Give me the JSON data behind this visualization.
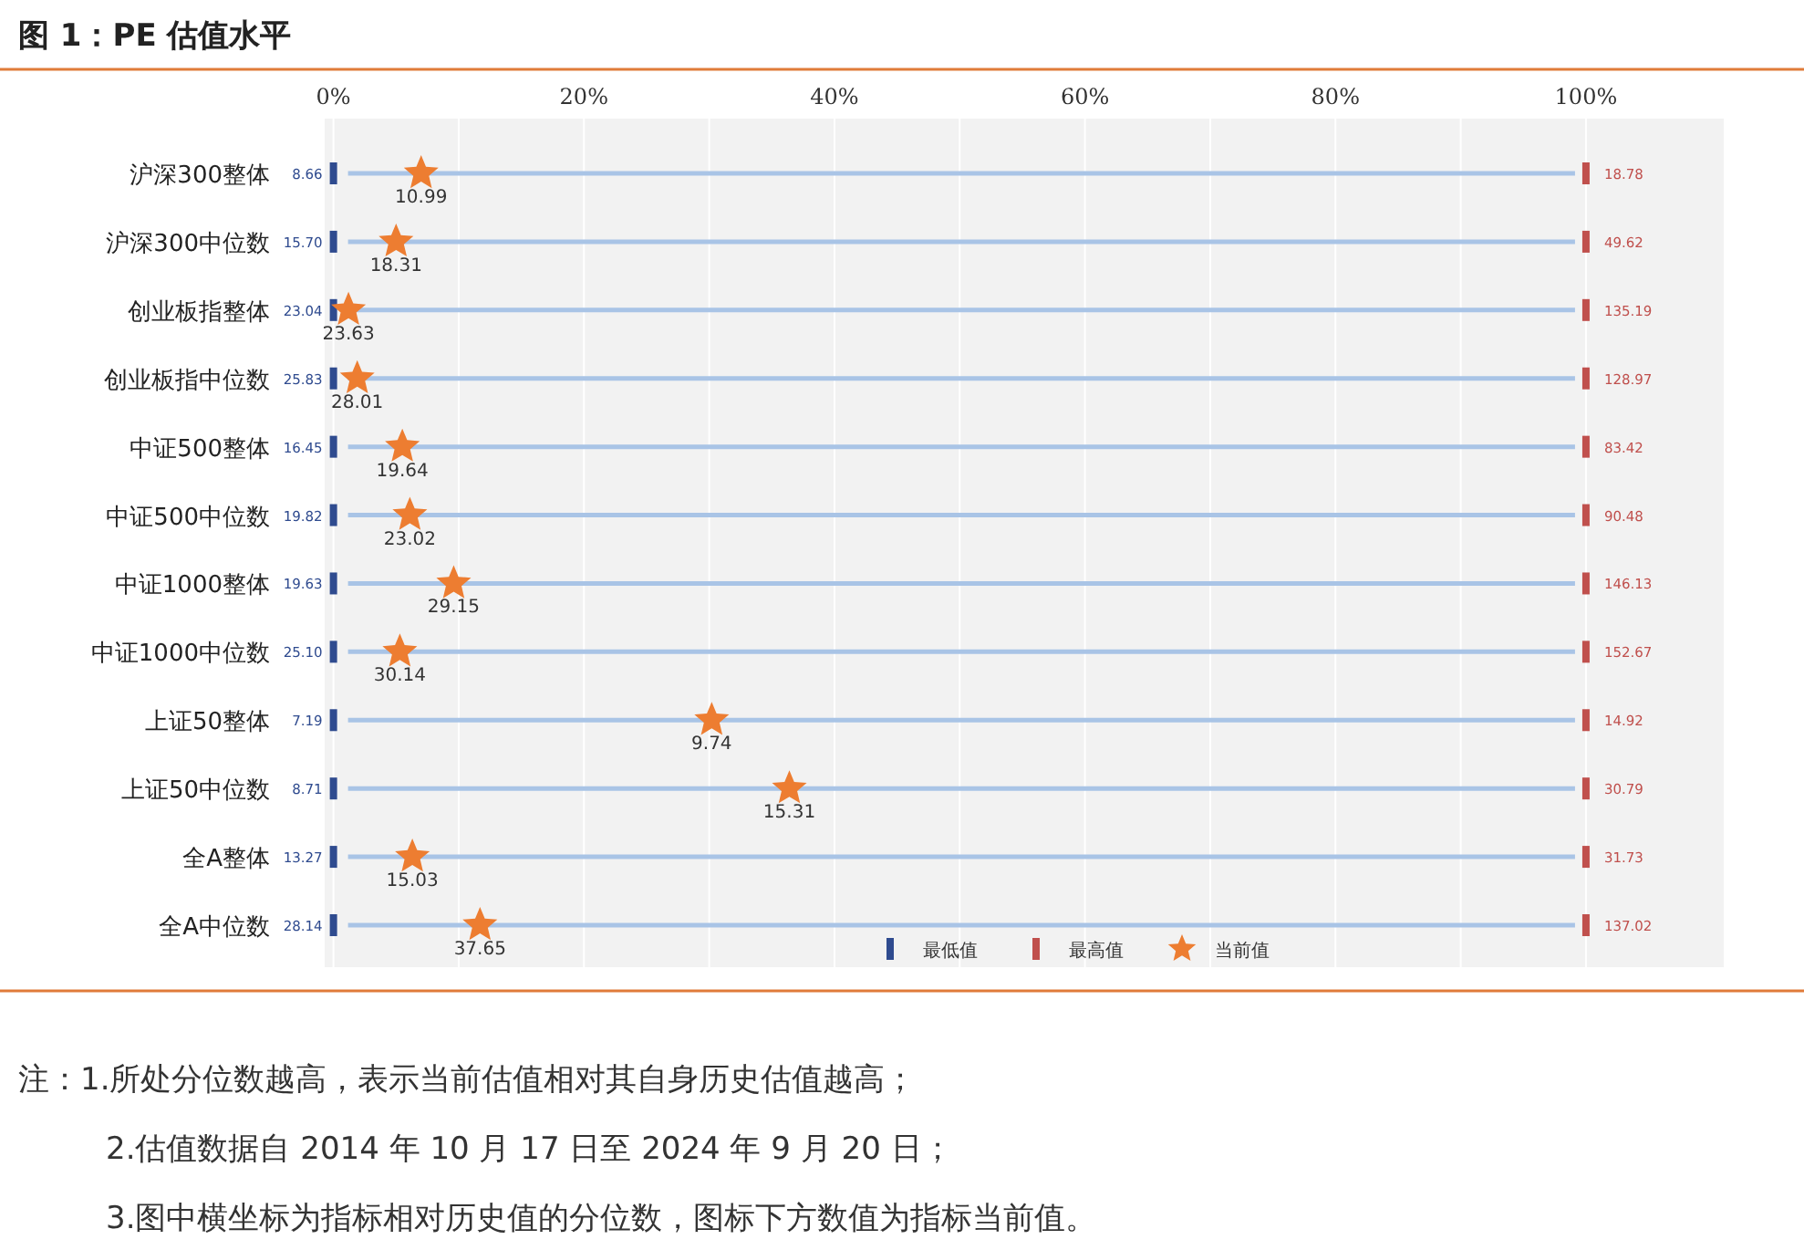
{
  "chart_data": {
    "type": "scatter",
    "title": "图 1：PE 估值水平",
    "categories": [
      "沪深300整体",
      "沪深300中位数",
      "创业板指整体",
      "创业板指中位数",
      "中证500整体",
      "中证500中位数",
      "中证1000整体",
      "中证1000中位数",
      "上证50整体",
      "上证50中位数",
      "全A整体",
      "全A中位数"
    ],
    "orientation": "horizontal",
    "xlim": [
      -0.7,
      111
    ],
    "xticks": [
      {
        "value": 0,
        "label": "0%"
      },
      {
        "value": 10,
        "label": null
      },
      {
        "value": 20,
        "label": "20%"
      },
      {
        "value": 30,
        "label": null
      },
      {
        "value": 40,
        "label": "40%"
      },
      {
        "value": 50,
        "label": null
      },
      {
        "value": 60,
        "label": "60%"
      },
      {
        "value": 70,
        "label": null
      },
      {
        "value": 80,
        "label": "80%"
      },
      {
        "value": 90,
        "label": null
      },
      {
        "value": 100,
        "label": "100%"
      }
    ],
    "grid": true,
    "legend": "bottom",
    "series": [
      {
        "name": "最低值",
        "color": "#2f4b8f",
        "marker": "square",
        "values": [
          0,
          0,
          0,
          0,
          0,
          0,
          0,
          0,
          0,
          0,
          0,
          0
        ]
      },
      {
        "name": "最高值",
        "color": "#c0504d",
        "marker": "square",
        "values": [
          100,
          100,
          100,
          100,
          100,
          100,
          100,
          100,
          100,
          100,
          100,
          100
        ]
      },
      {
        "name": "当前值",
        "color": "#ed7d31",
        "marker": "star",
        "values": [
          7.0,
          5.0,
          1.2,
          1.9,
          5.5,
          6.1,
          9.6,
          5.3,
          30.2,
          36.4,
          6.3,
          11.7
        ]
      }
    ],
    "annotations": [
      {
        "text": "8.66",
        "x": 0,
        "y": "沪深300整体"
      },
      {
        "text": "15.70",
        "x": 0,
        "y": "沪深300中位数"
      },
      {
        "text": "23.04",
        "x": 0,
        "y": "创业板指整体"
      },
      {
        "text": "25.83",
        "x": 0,
        "y": "创业板指中位数"
      },
      {
        "text": "16.45",
        "x": 0,
        "y": "中证500整体"
      },
      {
        "text": "19.82",
        "x": 0,
        "y": "中证500中位数"
      },
      {
        "text": "19.63",
        "x": 0,
        "y": "中证1000整体"
      },
      {
        "text": "25.10",
        "x": 0,
        "y": "中证1000中位数"
      },
      {
        "text": "7.19",
        "x": 0,
        "y": "上证50整体"
      },
      {
        "text": "8.71",
        "x": 0,
        "y": "上证50中位数"
      },
      {
        "text": "13.27",
        "x": 0,
        "y": "全A整体"
      },
      {
        "text": "28.14",
        "x": 0,
        "y": "全A中位数"
      },
      {
        "text": "18.78",
        "x": 100,
        "y": "沪深300整体"
      },
      {
        "text": "49.62",
        "x": 100,
        "y": "沪深300中位数"
      },
      {
        "text": "135.19",
        "x": 100,
        "y": "创业板指整体"
      },
      {
        "text": "128.97",
        "x": 100,
        "y": "创业板指中位数"
      },
      {
        "text": "83.42",
        "x": 100,
        "y": "中证500整体"
      },
      {
        "text": "90.48",
        "x": 100,
        "y": "中证500中位数"
      },
      {
        "text": "146.13",
        "x": 100,
        "y": "中证1000整体"
      },
      {
        "text": "152.67",
        "x": 100,
        "y": "中证1000中位数"
      },
      {
        "text": "14.92",
        "x": 100,
        "y": "上证50整体"
      },
      {
        "text": "30.79",
        "x": 100,
        "y": "上证50中位数"
      },
      {
        "text": "31.73",
        "x": 100,
        "y": "全A整体"
      },
      {
        "text": "137.02",
        "x": 100,
        "y": "全A中位数"
      },
      {
        "text": "10.99",
        "x": 7.0,
        "y": "沪深300整体"
      },
      {
        "text": "18.31",
        "x": 5.0,
        "y": "沪深300中位数"
      },
      {
        "text": "23.63",
        "x": 1.2,
        "y": "创业板指整体"
      },
      {
        "text": "28.01",
        "x": 1.9,
        "y": "创业板指中位数"
      },
      {
        "text": "19.64",
        "x": 5.5,
        "y": "中证500整体"
      },
      {
        "text": "23.02",
        "x": 6.1,
        "y": "中证500中位数"
      },
      {
        "text": "29.15",
        "x": 9.6,
        "y": "中证1000整体"
      },
      {
        "text": "30.14",
        "x": 5.3,
        "y": "中证1000中位数"
      },
      {
        "text": "9.74",
        "x": 30.2,
        "y": "上证50整体"
      },
      {
        "text": "15.31",
        "x": 36.4,
        "y": "上证50中位数"
      },
      {
        "text": "15.03",
        "x": 6.3,
        "y": "全A整体"
      },
      {
        "text": "37.65",
        "x": 11.7,
        "y": "全A中位数"
      },
      "注：1.所处分位数越高，表示当前估值相对其自身历史估值越高；",
      "2.估值数据自 2014 年 10 月 17 日至 2024 年 9 月 20 日；",
      "3.图中横坐标为指标相对历史值的分位数，图标下方数值为指标当前值。"
    ]
  }
}
